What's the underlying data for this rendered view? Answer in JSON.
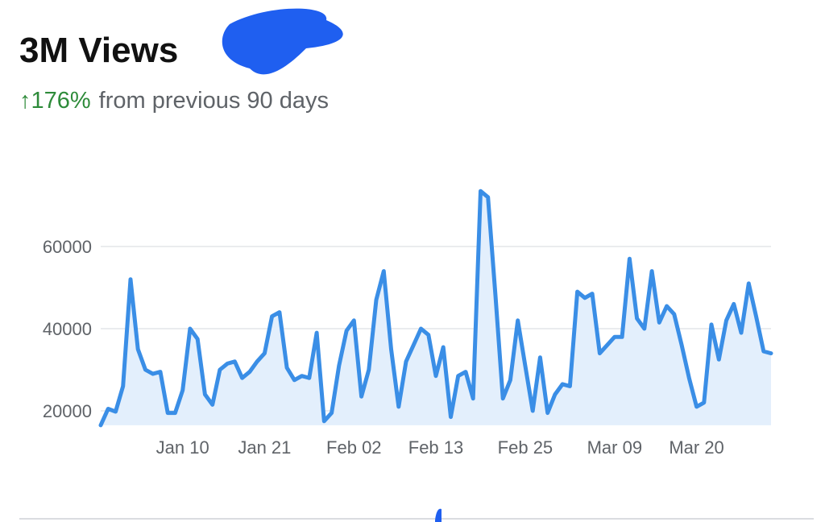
{
  "chart_data": {
    "type": "line",
    "title": "3M Views",
    "change": "↑176%",
    "change_text": "from previous 90 days",
    "color": "#3a8ee6",
    "area_color": "#e3effc",
    "grid": true,
    "categories": [
      null,
      null,
      null,
      null,
      null,
      null,
      null,
      null,
      null,
      null,
      null,
      "Jan 10",
      null,
      null,
      null,
      null,
      null,
      null,
      null,
      null,
      null,
      null,
      "Jan 21",
      null,
      null,
      null,
      null,
      null,
      null,
      null,
      null,
      null,
      null,
      null,
      "Feb 02",
      null,
      null,
      null,
      null,
      null,
      null,
      null,
      null,
      null,
      null,
      "Feb 13",
      null,
      null,
      null,
      null,
      null,
      null,
      null,
      null,
      null,
      null,
      null,
      "Feb 25",
      null,
      null,
      null,
      null,
      null,
      null,
      null,
      null,
      null,
      null,
      null,
      "Mar 09",
      null,
      null,
      null,
      null,
      null,
      null,
      null,
      null,
      null,
      null,
      "Mar 20",
      null,
      null,
      null,
      null,
      null,
      null,
      null,
      null,
      null,
      null
    ],
    "values": [
      16500,
      20500,
      19800,
      26000,
      52000,
      35000,
      30000,
      29000,
      29500,
      19500,
      19500,
      25000,
      40000,
      37500,
      24000,
      21500,
      30000,
      31500,
      32000,
      28000,
      29500,
      32000,
      34000,
      43000,
      44000,
      30500,
      27500,
      28500,
      28000,
      39000,
      17500,
      19500,
      31000,
      39500,
      42000,
      23500,
      30000,
      47000,
      54000,
      35000,
      21000,
      32000,
      36000,
      40000,
      38500,
      28500,
      35500,
      18500,
      28500,
      29500,
      23000,
      73500,
      72000,
      48000,
      23000,
      27500,
      42000,
      31000,
      20000,
      33000,
      19500,
      24000,
      26500,
      26000,
      49000,
      47500,
      48500,
      34000,
      36000,
      38000,
      38000,
      57000,
      42500,
      40000,
      54000,
      41500,
      45500,
      43500,
      36000,
      28000,
      21000,
      22000,
      41000,
      32500,
      42000,
      46000,
      39000,
      51000,
      43000,
      34500,
      34000
    ],
    "ylim": [
      16500,
      75000
    ],
    "yticks": [
      20000,
      40000,
      60000
    ]
  }
}
